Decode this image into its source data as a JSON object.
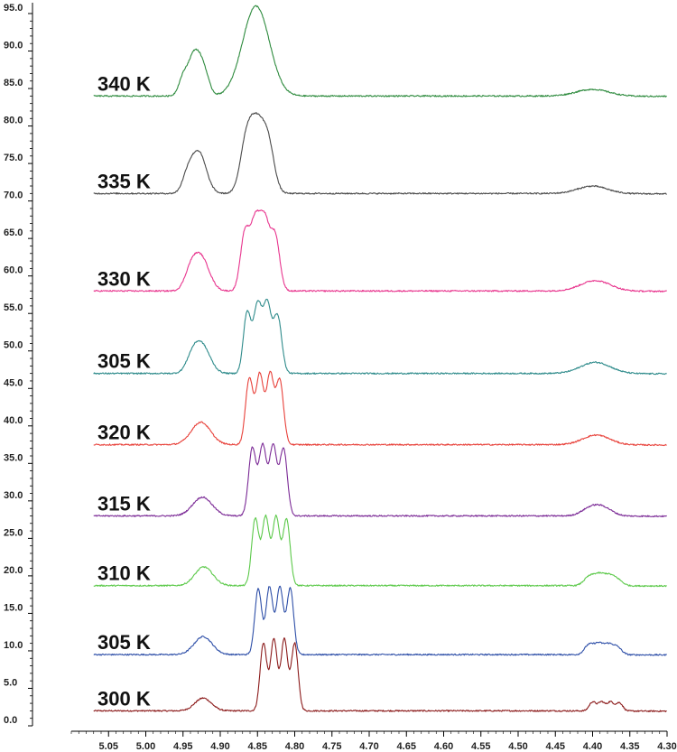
{
  "chart_data": {
    "type": "line",
    "title": "",
    "xlabel": "",
    "ylabel": "",
    "xlim": [
      5.1,
      4.3
    ],
    "x_reversed": true,
    "ylim": [
      0,
      95
    ],
    "grid": false,
    "legend": "none",
    "x_ticks": [
      "5.05",
      "5.00",
      "4.95",
      "4.90",
      "4.85",
      "4.80",
      "4.75",
      "4.70",
      "4.65",
      "4.60",
      "4.55",
      "4.50",
      "4.45",
      "4.40",
      "4.35",
      "4.30"
    ],
    "y_ticks": [
      "0.0",
      "5.0",
      "10.0",
      "15.0",
      "20.0",
      "25.0",
      "30.0",
      "35.0",
      "40.0",
      "45.0",
      "50.0",
      "55.0",
      "60.0",
      "65.0",
      "70.0",
      "75.0",
      "80.0",
      "85.0",
      "90.0",
      "95.0"
    ],
    "series": [
      {
        "name": "300 K",
        "label": "300 K",
        "color": "#8b1a1a",
        "baseline": 2.0,
        "peaks": [
          [
            4.923,
            0.011,
            1.7
          ],
          [
            4.842,
            0.0045,
            9.0
          ],
          [
            4.828,
            0.0045,
            9.5
          ],
          [
            4.814,
            0.0045,
            9.5
          ],
          [
            4.8,
            0.0045,
            9.0
          ],
          [
            4.4,
            0.0045,
            1.2
          ],
          [
            4.388,
            0.0045,
            1.2
          ],
          [
            4.376,
            0.0045,
            1.2
          ],
          [
            4.364,
            0.0045,
            1.1
          ]
        ]
      },
      {
        "name": "305 K",
        "label": "305 K",
        "color": "#2e4fa8",
        "baseline": 9.5,
        "peaks": [
          [
            4.923,
            0.012,
            2.4
          ],
          [
            4.849,
            0.0046,
            8.8
          ],
          [
            4.834,
            0.0046,
            9.0
          ],
          [
            4.82,
            0.0046,
            9.0
          ],
          [
            4.806,
            0.0046,
            8.8
          ],
          [
            4.405,
            0.006,
            1.3
          ],
          [
            4.392,
            0.006,
            1.4
          ],
          [
            4.379,
            0.006,
            1.3
          ],
          [
            4.367,
            0.006,
            1.0
          ]
        ]
      },
      {
        "name": "310 K",
        "label": "310 K",
        "color": "#5cc94a",
        "baseline": 18.7,
        "peaks": [
          [
            4.922,
            0.012,
            2.5
          ],
          [
            4.853,
            0.0048,
            8.9
          ],
          [
            4.839,
            0.0048,
            9.1
          ],
          [
            4.825,
            0.0048,
            9.1
          ],
          [
            4.811,
            0.0048,
            8.8
          ],
          [
            4.405,
            0.007,
            1.1
          ],
          [
            4.392,
            0.007,
            1.3
          ],
          [
            4.379,
            0.007,
            1.2
          ],
          [
            4.367,
            0.007,
            0.8
          ]
        ]
      },
      {
        "name": "315 K",
        "label": "315 K",
        "color": "#7b2a96",
        "baseline": 28.0,
        "peaks": [
          [
            4.924,
            0.013,
            2.5
          ],
          [
            4.857,
            0.005,
            9.0
          ],
          [
            4.843,
            0.005,
            9.3
          ],
          [
            4.829,
            0.005,
            9.3
          ],
          [
            4.815,
            0.005,
            8.9
          ],
          [
            4.403,
            0.012,
            1.0
          ],
          [
            4.385,
            0.012,
            1.0
          ]
        ]
      },
      {
        "name": "320 K",
        "label": "320 K",
        "color": "#e8413a",
        "baseline": 37.5,
        "peaks": [
          [
            4.926,
            0.013,
            3.0
          ],
          [
            4.861,
            0.005,
            8.8
          ],
          [
            4.847,
            0.005,
            9.3
          ],
          [
            4.833,
            0.005,
            9.3
          ],
          [
            4.82,
            0.005,
            8.5
          ],
          [
            4.395,
            0.018,
            1.3
          ]
        ]
      },
      {
        "name": "305 K",
        "label": "305 K",
        "color": "#2e8b8b",
        "baseline": 47.0,
        "peaks": [
          [
            4.938,
            0.008,
            1.5
          ],
          [
            4.925,
            0.011,
            3.8
          ],
          [
            4.864,
            0.005,
            8.0
          ],
          [
            4.85,
            0.0055,
            9.0
          ],
          [
            4.837,
            0.0055,
            9.0
          ],
          [
            4.823,
            0.0055,
            7.6
          ],
          [
            4.396,
            0.02,
            1.5
          ]
        ]
      },
      {
        "name": "330 K",
        "label": "330 K",
        "color": "#e8358e",
        "baseline": 58.0,
        "peaks": [
          [
            4.94,
            0.008,
            2.0
          ],
          [
            4.926,
            0.011,
            4.5
          ],
          [
            4.867,
            0.006,
            7.5
          ],
          [
            4.853,
            0.0065,
            8.8
          ],
          [
            4.84,
            0.0065,
            8.8
          ],
          [
            4.826,
            0.006,
            7.0
          ],
          [
            4.396,
            0.02,
            1.4
          ]
        ]
      },
      {
        "name": "335 K",
        "label": "335 K",
        "color": "#4a4a4a",
        "baseline": 71.0,
        "peaks": [
          [
            4.944,
            0.007,
            2.0
          ],
          [
            4.929,
            0.01,
            5.5
          ],
          [
            4.866,
            0.008,
            5.5
          ],
          [
            4.851,
            0.01,
            9.0
          ],
          [
            4.835,
            0.008,
            5.5
          ],
          [
            4.4,
            0.02,
            1.0
          ]
        ]
      },
      {
        "name": "340 K",
        "label": "340 K",
        "color": "#2e8b3e",
        "baseline": 84.0,
        "peaks": [
          [
            4.95,
            0.006,
            2.2
          ],
          [
            4.935,
            0.008,
            5.5
          ],
          [
            4.922,
            0.007,
            3.0
          ],
          [
            4.852,
            0.018,
            12.0
          ],
          [
            4.4,
            0.022,
            0.9
          ]
        ]
      }
    ]
  }
}
